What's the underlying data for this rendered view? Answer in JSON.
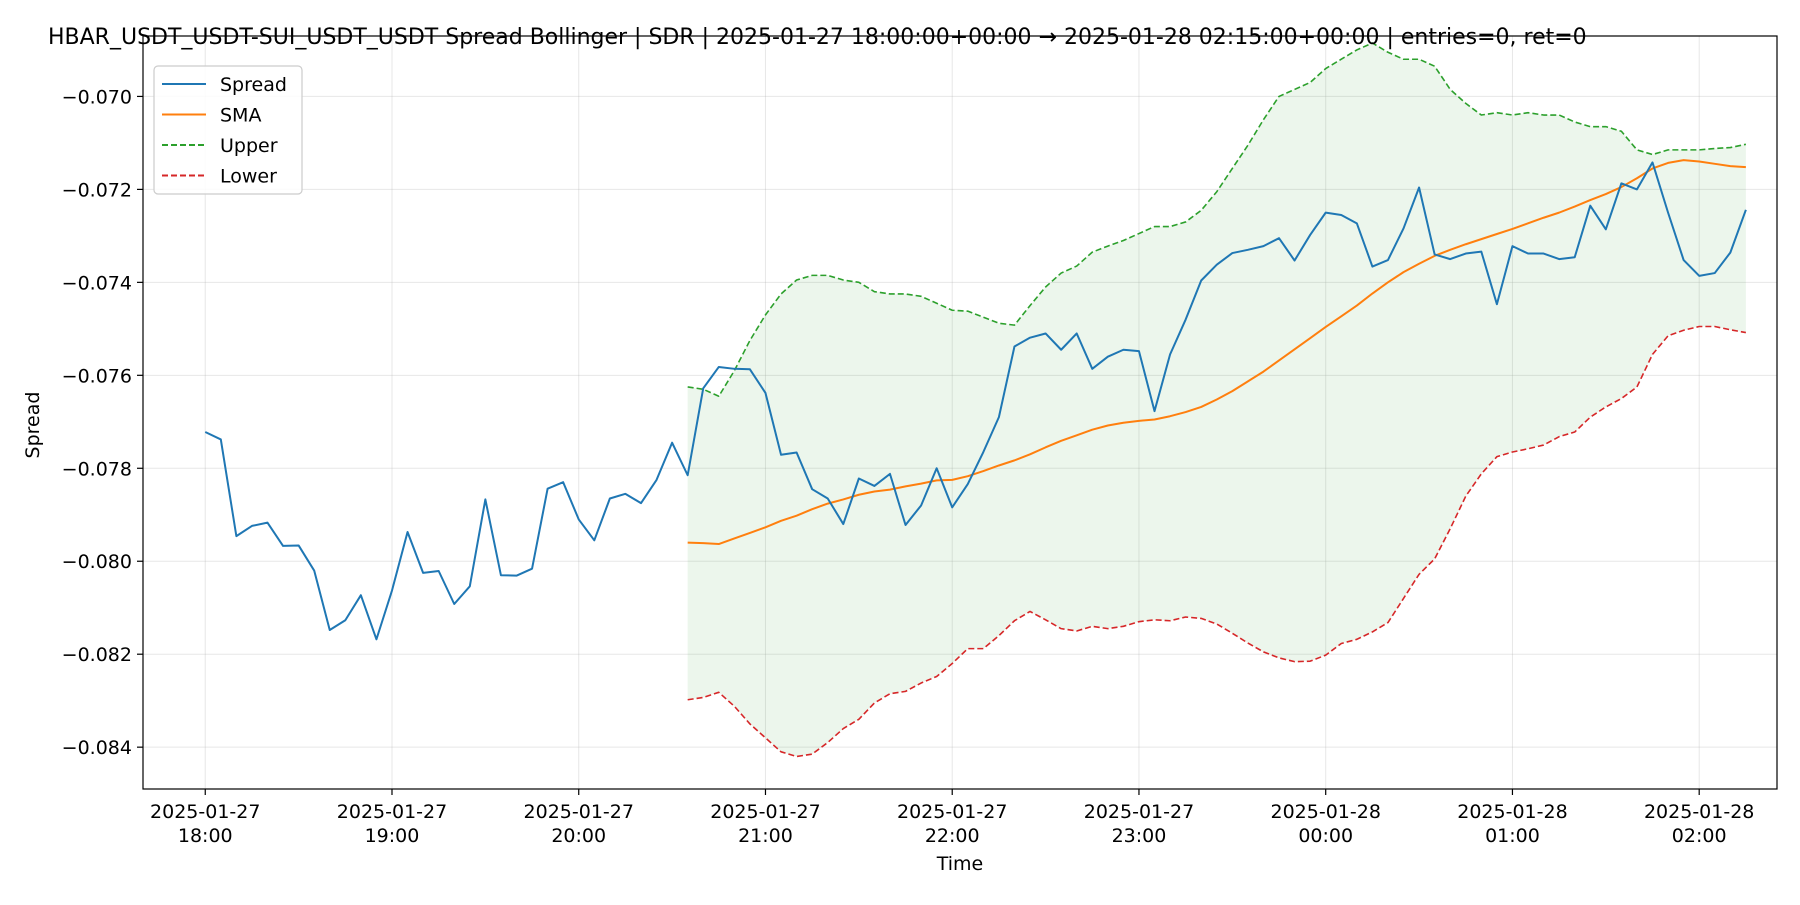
{
  "chart_data": {
    "type": "line",
    "title": "HBAR_USDT_USDT-SUI_USDT_USDT Spread Bollinger  | SDR | 2025-01-27 18:00:00+00:00 → 2025-01-28 02:15:00+00:00 | entries=0, ret=0",
    "xlabel": "Time",
    "ylabel": "Spread",
    "x_range": [
      "2025-01-27 17:40",
      "2025-01-28 02:25"
    ],
    "ylim": [
      -0.0849,
      -0.0687
    ],
    "x_ticks": [
      {
        "value": "2025-01-27 18:00",
        "label": [
          "2025-01-27",
          "18:00"
        ]
      },
      {
        "value": "2025-01-27 19:00",
        "label": [
          "2025-01-27",
          "19:00"
        ]
      },
      {
        "value": "2025-01-27 20:00",
        "label": [
          "2025-01-27",
          "20:00"
        ]
      },
      {
        "value": "2025-01-27 21:00",
        "label": [
          "2025-01-27",
          "21:00"
        ]
      },
      {
        "value": "2025-01-27 22:00",
        "label": [
          "2025-01-27",
          "22:00"
        ]
      },
      {
        "value": "2025-01-27 23:00",
        "label": [
          "2025-01-27",
          "23:00"
        ]
      },
      {
        "value": "2025-01-28 00:00",
        "label": [
          "2025-01-28",
          "00:00"
        ]
      },
      {
        "value": "2025-01-28 01:00",
        "label": [
          "2025-01-28",
          "01:00"
        ]
      },
      {
        "value": "2025-01-28 02:00",
        "label": [
          "2025-01-28",
          "02:00"
        ]
      }
    ],
    "y_ticks": [
      {
        "value": -0.07,
        "label": "−0.070"
      },
      {
        "value": -0.072,
        "label": "−0.072"
      },
      {
        "value": -0.074,
        "label": "−0.074"
      },
      {
        "value": -0.076,
        "label": "−0.076"
      },
      {
        "value": -0.078,
        "label": "−0.078"
      },
      {
        "value": -0.08,
        "label": "−0.080"
      },
      {
        "value": -0.082,
        "label": "−0.082"
      },
      {
        "value": -0.084,
        "label": "−0.084"
      }
    ],
    "grid": true,
    "legend_position": "top-left",
    "band_fill_color": "#2ca02c",
    "series": [
      {
        "name": "Spread",
        "color": "#1f77b4",
        "style": "solid",
        "x": [
          "2025-01-27 18:00",
          "2025-01-27 18:05",
          "2025-01-27 18:10",
          "2025-01-27 18:15",
          "2025-01-27 18:20",
          "2025-01-27 18:25",
          "2025-01-27 18:30",
          "2025-01-27 18:35",
          "2025-01-27 18:40",
          "2025-01-27 18:45",
          "2025-01-27 18:50",
          "2025-01-27 18:55",
          "2025-01-27 19:00",
          "2025-01-27 19:05",
          "2025-01-27 19:10",
          "2025-01-27 19:15",
          "2025-01-27 19:20",
          "2025-01-27 19:25",
          "2025-01-27 19:30",
          "2025-01-27 19:35",
          "2025-01-27 19:40",
          "2025-01-27 19:45",
          "2025-01-27 19:50",
          "2025-01-27 19:55",
          "2025-01-27 20:00",
          "2025-01-27 20:05",
          "2025-01-27 20:10",
          "2025-01-27 20:15",
          "2025-01-27 20:20",
          "2025-01-27 20:25",
          "2025-01-27 20:30",
          "2025-01-27 20:35",
          "2025-01-27 20:40",
          "2025-01-27 20:45",
          "2025-01-27 20:50",
          "2025-01-27 20:55",
          "2025-01-27 21:00",
          "2025-01-27 21:05",
          "2025-01-27 21:10",
          "2025-01-27 21:15",
          "2025-01-27 21:20",
          "2025-01-27 21:25",
          "2025-01-27 21:30",
          "2025-01-27 21:35",
          "2025-01-27 21:40",
          "2025-01-27 21:45",
          "2025-01-27 21:50",
          "2025-01-27 21:55",
          "2025-01-27 22:00",
          "2025-01-27 22:05",
          "2025-01-27 22:10",
          "2025-01-27 22:15",
          "2025-01-27 22:20",
          "2025-01-27 22:25",
          "2025-01-27 22:30",
          "2025-01-27 22:35",
          "2025-01-27 22:40",
          "2025-01-27 22:45",
          "2025-01-27 22:50",
          "2025-01-27 22:55",
          "2025-01-27 23:00",
          "2025-01-27 23:05",
          "2025-01-27 23:10",
          "2025-01-27 23:15",
          "2025-01-27 23:20",
          "2025-01-27 23:25",
          "2025-01-27 23:30",
          "2025-01-27 23:35",
          "2025-01-27 23:40",
          "2025-01-27 23:45",
          "2025-01-27 23:50",
          "2025-01-27 23:55",
          "2025-01-28 00:00",
          "2025-01-28 00:05",
          "2025-01-28 00:10",
          "2025-01-28 00:15",
          "2025-01-28 00:20",
          "2025-01-28 00:25",
          "2025-01-28 00:30",
          "2025-01-28 00:35",
          "2025-01-28 00:40",
          "2025-01-28 00:45",
          "2025-01-28 00:50",
          "2025-01-28 00:55",
          "2025-01-28 01:00",
          "2025-01-28 01:05",
          "2025-01-28 01:10",
          "2025-01-28 01:15",
          "2025-01-28 01:20",
          "2025-01-28 01:25",
          "2025-01-28 01:30",
          "2025-01-28 01:35",
          "2025-01-28 01:40",
          "2025-01-28 01:45",
          "2025-01-28 01:50",
          "2025-01-28 01:55",
          "2025-01-28 02:00",
          "2025-01-28 02:05",
          "2025-01-28 02:10",
          "2025-01-28 02:15"
        ],
        "values": [
          -0.07722,
          -0.07738,
          -0.07946,
          -0.07924,
          -0.07917,
          -0.07967,
          -0.07966,
          -0.0802,
          -0.08148,
          -0.08127,
          -0.08073,
          -0.08168,
          -0.08063,
          -0.07937,
          -0.08025,
          -0.08021,
          -0.08092,
          -0.08054,
          -0.07867,
          -0.0803,
          -0.08031,
          -0.08016,
          -0.07844,
          -0.0783,
          -0.0791,
          -0.07955,
          -0.07865,
          -0.07855,
          -0.07875,
          -0.07825,
          -0.07745,
          -0.07815,
          -0.07628,
          -0.07582,
          -0.07586,
          -0.07587,
          -0.07638,
          -0.07771,
          -0.07766,
          -0.07845,
          -0.07865,
          -0.0792,
          -0.07822,
          -0.07838,
          -0.07812,
          -0.07922,
          -0.0788,
          -0.078,
          -0.07884,
          -0.07834,
          -0.07765,
          -0.0769,
          -0.07538,
          -0.07519,
          -0.0751,
          -0.07545,
          -0.0751,
          -0.07586,
          -0.0756,
          -0.07545,
          -0.07548,
          -0.07677,
          -0.07555,
          -0.0748,
          -0.07396,
          -0.07362,
          -0.07337,
          -0.0733,
          -0.07322,
          -0.07305,
          -0.07353,
          -0.07298,
          -0.0725,
          -0.07255,
          -0.07273,
          -0.07366,
          -0.07352,
          -0.07284,
          -0.07196,
          -0.0734,
          -0.0735,
          -0.07338,
          -0.07334,
          -0.07447,
          -0.07322,
          -0.07338,
          -0.07338,
          -0.0735,
          -0.07346,
          -0.07235,
          -0.07286,
          -0.07187,
          -0.072,
          -0.07142,
          -0.0725,
          -0.07352,
          -0.07386,
          -0.0738,
          -0.07336,
          -0.07244
        ]
      },
      {
        "name": "SMA",
        "color": "#ff7f0e",
        "style": "solid",
        "x": [
          "2025-01-27 20:35",
          "2025-01-27 20:40",
          "2025-01-27 20:45",
          "2025-01-27 20:50",
          "2025-01-27 20:55",
          "2025-01-27 21:00",
          "2025-01-27 21:05",
          "2025-01-27 21:10",
          "2025-01-27 21:15",
          "2025-01-27 21:20",
          "2025-01-27 21:25",
          "2025-01-27 21:30",
          "2025-01-27 21:35",
          "2025-01-27 21:40",
          "2025-01-27 21:45",
          "2025-01-27 21:50",
          "2025-01-27 21:55",
          "2025-01-27 22:00",
          "2025-01-27 22:05",
          "2025-01-27 22:10",
          "2025-01-27 22:15",
          "2025-01-27 22:20",
          "2025-01-27 22:25",
          "2025-01-27 22:30",
          "2025-01-27 22:35",
          "2025-01-27 22:40",
          "2025-01-27 22:45",
          "2025-01-27 22:50",
          "2025-01-27 22:55",
          "2025-01-27 23:00",
          "2025-01-27 23:05",
          "2025-01-27 23:10",
          "2025-01-27 23:15",
          "2025-01-27 23:20",
          "2025-01-27 23:25",
          "2025-01-27 23:30",
          "2025-01-27 23:35",
          "2025-01-27 23:40",
          "2025-01-27 23:45",
          "2025-01-27 23:50",
          "2025-01-27 23:55",
          "2025-01-28 00:00",
          "2025-01-28 00:05",
          "2025-01-28 00:10",
          "2025-01-28 00:15",
          "2025-01-28 00:20",
          "2025-01-28 00:25",
          "2025-01-28 00:30",
          "2025-01-28 00:35",
          "2025-01-28 00:40",
          "2025-01-28 00:45",
          "2025-01-28 00:50",
          "2025-01-28 00:55",
          "2025-01-28 01:00",
          "2025-01-28 01:05",
          "2025-01-28 01:10",
          "2025-01-28 01:15",
          "2025-01-28 01:20",
          "2025-01-28 01:25",
          "2025-01-28 01:30",
          "2025-01-28 01:35",
          "2025-01-28 01:40",
          "2025-01-28 01:45",
          "2025-01-28 01:50",
          "2025-01-28 01:55",
          "2025-01-28 02:00",
          "2025-01-28 02:05",
          "2025-01-28 02:10",
          "2025-01-28 02:15"
        ],
        "values": [
          -0.0796,
          -0.07961,
          -0.07963,
          -0.07951,
          -0.07939,
          -0.07927,
          -0.07913,
          -0.07902,
          -0.07888,
          -0.07876,
          -0.07867,
          -0.07857,
          -0.0785,
          -0.07846,
          -0.07839,
          -0.07833,
          -0.07826,
          -0.07825,
          -0.07817,
          -0.07806,
          -0.07794,
          -0.07783,
          -0.0777,
          -0.07755,
          -0.07741,
          -0.07729,
          -0.07717,
          -0.07708,
          -0.07702,
          -0.07698,
          -0.07695,
          -0.07688,
          -0.07679,
          -0.07668,
          -0.07652,
          -0.07634,
          -0.07613,
          -0.07592,
          -0.07568,
          -0.07544,
          -0.0752,
          -0.07496,
          -0.07473,
          -0.0745,
          -0.07424,
          -0.074,
          -0.07378,
          -0.0736,
          -0.07343,
          -0.0733,
          -0.07318,
          -0.07307,
          -0.07296,
          -0.07285,
          -0.07273,
          -0.07261,
          -0.0725,
          -0.07237,
          -0.07223,
          -0.0721,
          -0.07195,
          -0.07176,
          -0.07155,
          -0.07143,
          -0.07137,
          -0.0714,
          -0.07145,
          -0.0715,
          -0.07152
        ]
      },
      {
        "name": "Upper",
        "color": "#2ca02c",
        "style": "dashed",
        "x": [
          "2025-01-27 20:35",
          "2025-01-27 20:40",
          "2025-01-27 20:45",
          "2025-01-27 20:50",
          "2025-01-27 20:55",
          "2025-01-27 21:00",
          "2025-01-27 21:05",
          "2025-01-27 21:10",
          "2025-01-27 21:15",
          "2025-01-27 21:20",
          "2025-01-27 21:25",
          "2025-01-27 21:30",
          "2025-01-27 21:35",
          "2025-01-27 21:40",
          "2025-01-27 21:45",
          "2025-01-27 21:50",
          "2025-01-27 21:55",
          "2025-01-27 22:00",
          "2025-01-27 22:05",
          "2025-01-27 22:10",
          "2025-01-27 22:15",
          "2025-01-27 22:20",
          "2025-01-27 22:25",
          "2025-01-27 22:30",
          "2025-01-27 22:35",
          "2025-01-27 22:40",
          "2025-01-27 22:45",
          "2025-01-27 22:50",
          "2025-01-27 22:55",
          "2025-01-27 23:00",
          "2025-01-27 23:05",
          "2025-01-27 23:10",
          "2025-01-27 23:15",
          "2025-01-27 23:20",
          "2025-01-27 23:25",
          "2025-01-27 23:30",
          "2025-01-27 23:35",
          "2025-01-27 23:40",
          "2025-01-27 23:45",
          "2025-01-27 23:50",
          "2025-01-27 23:55",
          "2025-01-28 00:00",
          "2025-01-28 00:05",
          "2025-01-28 00:10",
          "2025-01-28 00:15",
          "2025-01-28 00:20",
          "2025-01-28 00:25",
          "2025-01-28 00:30",
          "2025-01-28 00:35",
          "2025-01-28 00:40",
          "2025-01-28 00:45",
          "2025-01-28 00:50",
          "2025-01-28 00:55",
          "2025-01-28 01:00",
          "2025-01-28 01:05",
          "2025-01-28 01:10",
          "2025-01-28 01:15",
          "2025-01-28 01:20",
          "2025-01-28 01:25",
          "2025-01-28 01:30",
          "2025-01-28 01:35",
          "2025-01-28 01:40",
          "2025-01-28 01:45",
          "2025-01-28 01:50",
          "2025-01-28 01:55",
          "2025-01-28 02:00",
          "2025-01-28 02:05",
          "2025-01-28 02:10",
          "2025-01-28 02:15"
        ],
        "values": [
          -0.07625,
          -0.0763,
          -0.07645,
          -0.0759,
          -0.07525,
          -0.0747,
          -0.07425,
          -0.07395,
          -0.07385,
          -0.07385,
          -0.07395,
          -0.074,
          -0.0742,
          -0.07425,
          -0.07425,
          -0.0743,
          -0.07445,
          -0.0746,
          -0.07462,
          -0.07475,
          -0.07488,
          -0.07492,
          -0.0745,
          -0.0741,
          -0.0738,
          -0.07365,
          -0.07335,
          -0.07322,
          -0.0731,
          -0.07295,
          -0.0728,
          -0.0728,
          -0.0727,
          -0.07245,
          -0.07205,
          -0.07155,
          -0.07105,
          -0.0705,
          -0.07,
          -0.06985,
          -0.0697,
          -0.0694,
          -0.0692,
          -0.069,
          -0.06885,
          -0.06905,
          -0.0692,
          -0.0692,
          -0.06935,
          -0.06985,
          -0.07015,
          -0.0704,
          -0.07035,
          -0.0704,
          -0.07035,
          -0.0704,
          -0.0704,
          -0.07055,
          -0.07065,
          -0.07065,
          -0.07075,
          -0.07115,
          -0.07125,
          -0.07115,
          -0.07115,
          -0.07115,
          -0.07112,
          -0.0711,
          -0.07103
        ]
      },
      {
        "name": "Lower",
        "color": "#d62728",
        "style": "dashed",
        "x": [
          "2025-01-27 20:35",
          "2025-01-27 20:40",
          "2025-01-27 20:45",
          "2025-01-27 20:50",
          "2025-01-27 20:55",
          "2025-01-27 21:00",
          "2025-01-27 21:05",
          "2025-01-27 21:10",
          "2025-01-27 21:15",
          "2025-01-27 21:20",
          "2025-01-27 21:25",
          "2025-01-27 21:30",
          "2025-01-27 21:35",
          "2025-01-27 21:40",
          "2025-01-27 21:45",
          "2025-01-27 21:50",
          "2025-01-27 21:55",
          "2025-01-27 22:00",
          "2025-01-27 22:05",
          "2025-01-27 22:10",
          "2025-01-27 22:15",
          "2025-01-27 22:20",
          "2025-01-27 22:25",
          "2025-01-27 22:30",
          "2025-01-27 22:35",
          "2025-01-27 22:40",
          "2025-01-27 22:45",
          "2025-01-27 22:50",
          "2025-01-27 22:55",
          "2025-01-27 23:00",
          "2025-01-27 23:05",
          "2025-01-27 23:10",
          "2025-01-27 23:15",
          "2025-01-27 23:20",
          "2025-01-27 23:25",
          "2025-01-27 23:30",
          "2025-01-27 23:35",
          "2025-01-27 23:40",
          "2025-01-27 23:45",
          "2025-01-27 23:50",
          "2025-01-27 23:55",
          "2025-01-28 00:00",
          "2025-01-28 00:05",
          "2025-01-28 00:10",
          "2025-01-28 00:15",
          "2025-01-28 00:20",
          "2025-01-28 00:25",
          "2025-01-28 00:30",
          "2025-01-28 00:35",
          "2025-01-28 00:40",
          "2025-01-28 00:45",
          "2025-01-28 00:50",
          "2025-01-28 00:55",
          "2025-01-28 01:00",
          "2025-01-28 01:05",
          "2025-01-28 01:10",
          "2025-01-28 01:15",
          "2025-01-28 01:20",
          "2025-01-28 01:25",
          "2025-01-28 01:30",
          "2025-01-28 01:35",
          "2025-01-28 01:40",
          "2025-01-28 01:45",
          "2025-01-28 01:50",
          "2025-01-28 01:55",
          "2025-01-28 02:00",
          "2025-01-28 02:05",
          "2025-01-28 02:10",
          "2025-01-28 02:15"
        ],
        "values": [
          -0.08298,
          -0.08293,
          -0.08282,
          -0.08312,
          -0.0835,
          -0.0838,
          -0.0841,
          -0.0842,
          -0.08415,
          -0.0839,
          -0.0836,
          -0.0834,
          -0.08305,
          -0.08285,
          -0.0828,
          -0.08262,
          -0.08248,
          -0.0822,
          -0.08188,
          -0.08188,
          -0.0816,
          -0.08128,
          -0.08108,
          -0.08126,
          -0.08145,
          -0.0815,
          -0.0814,
          -0.08145,
          -0.0814,
          -0.0813,
          -0.08126,
          -0.08128,
          -0.0812,
          -0.08123,
          -0.08135,
          -0.08155,
          -0.08176,
          -0.08195,
          -0.08208,
          -0.08216,
          -0.08215,
          -0.08202,
          -0.08177,
          -0.08168,
          -0.08152,
          -0.08132,
          -0.0808,
          -0.08028,
          -0.07995,
          -0.0793,
          -0.0786,
          -0.07812,
          -0.07775,
          -0.07765,
          -0.07758,
          -0.0775,
          -0.07732,
          -0.07722,
          -0.0769,
          -0.07668,
          -0.0765,
          -0.07625,
          -0.07555,
          -0.07515,
          -0.07503,
          -0.07495,
          -0.07495,
          -0.07502,
          -0.07508
        ]
      }
    ]
  }
}
